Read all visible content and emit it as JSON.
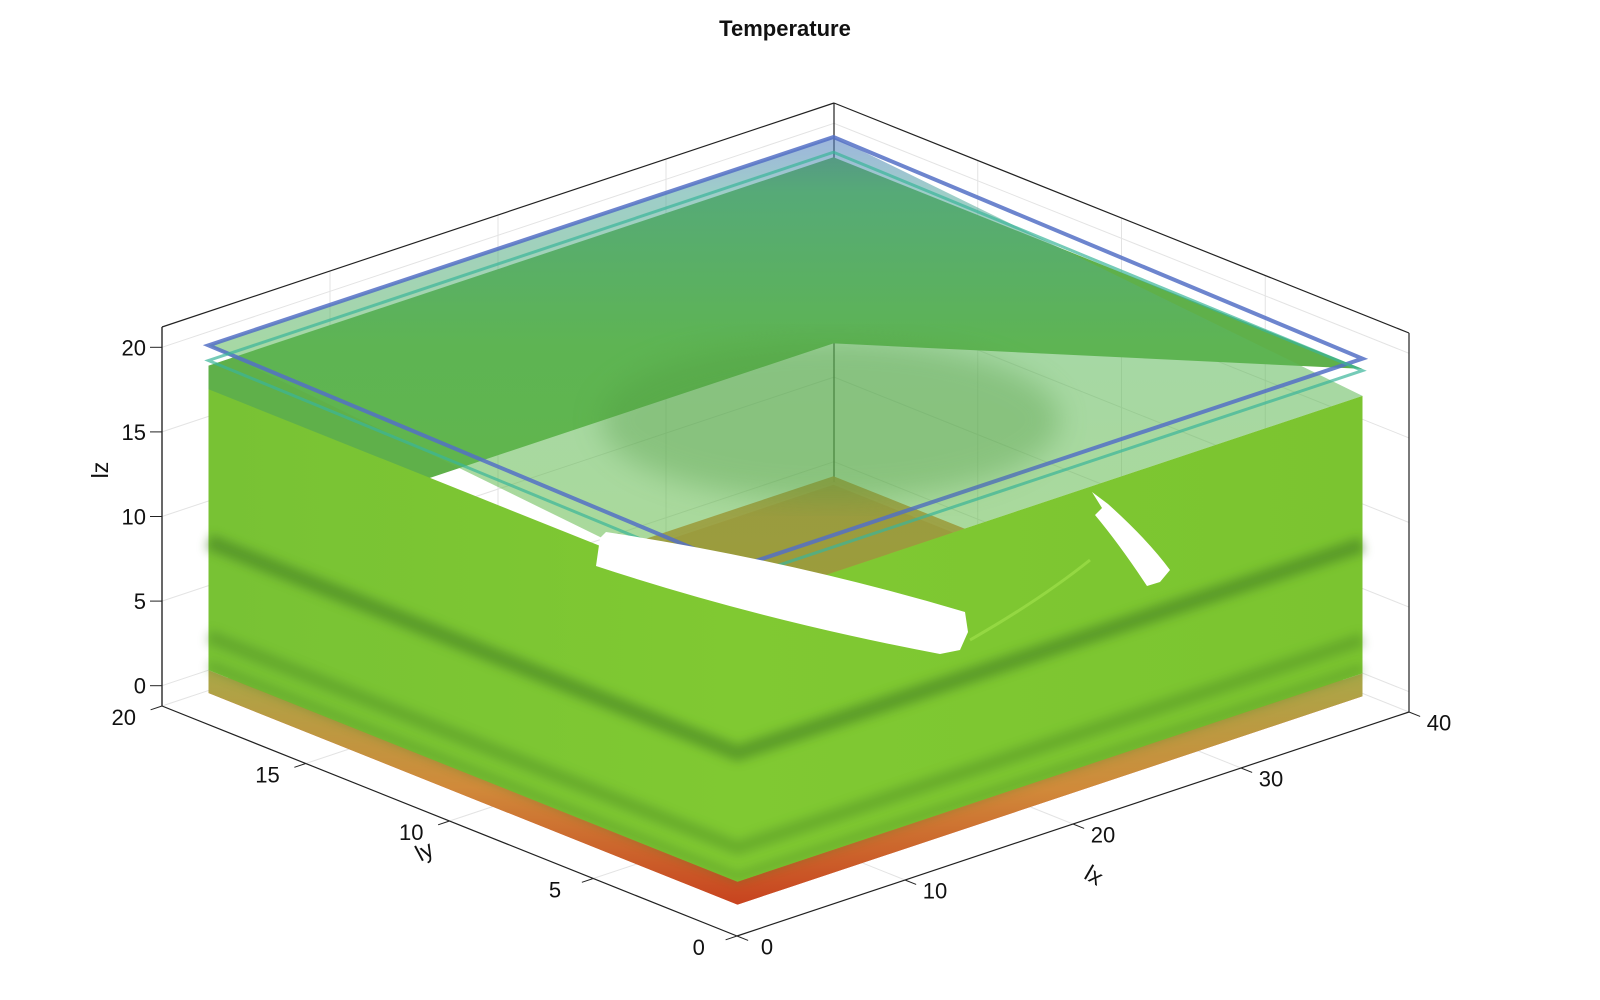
{
  "chart_data": {
    "type": "volume",
    "title": "Temperature",
    "axes": {
      "x": {
        "label": "lx",
        "range": [
          0,
          40
        ],
        "ticks": [
          0,
          10,
          20,
          30,
          40
        ]
      },
      "y": {
        "label": "ly",
        "range": [
          0,
          20
        ],
        "ticks": [
          0,
          5,
          10,
          15,
          20
        ]
      },
      "z": {
        "label": "lz",
        "range": [
          0,
          20
        ],
        "ticks": [
          0,
          5,
          10,
          15,
          20
        ]
      }
    },
    "grid": true,
    "colormap": [
      "#d04a1f",
      "#e07a2f",
      "#7cc92e",
      "#3bb59a",
      "#5470c6"
    ],
    "dominant_color": "#7cc92e",
    "top_plate_color": "#5470c6",
    "bottom_plate_color": "#c8431f"
  }
}
